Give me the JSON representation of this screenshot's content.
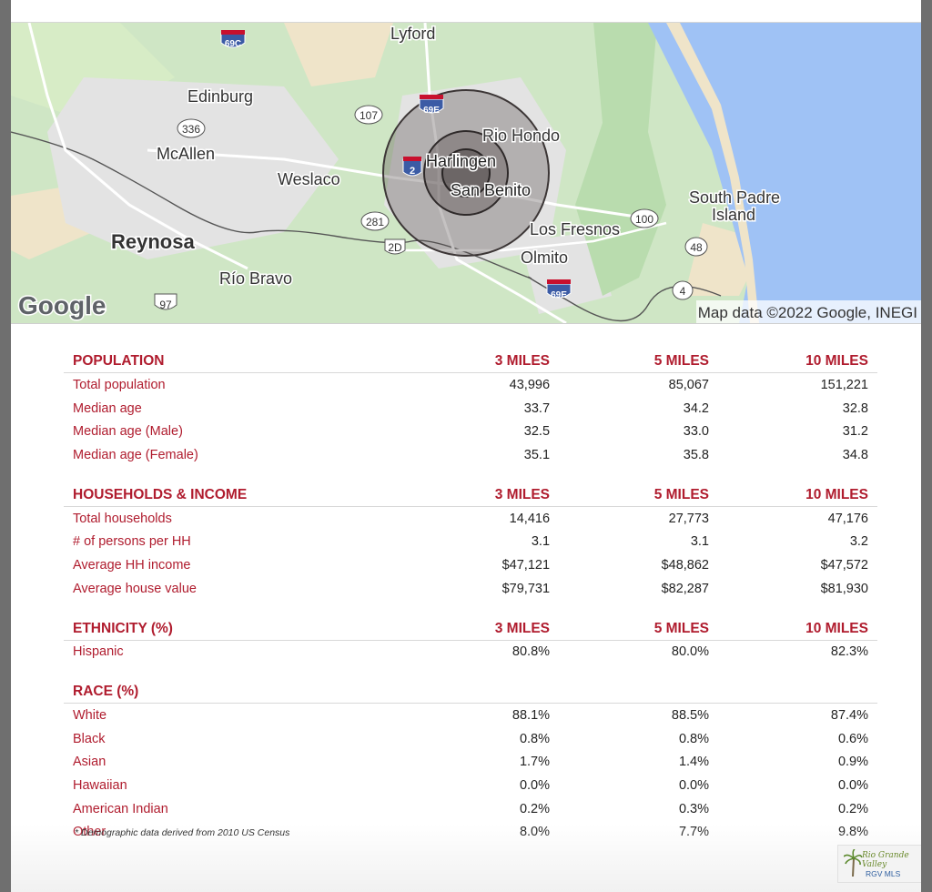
{
  "map": {
    "attribution": "Map data ©2022 Google, INEGI",
    "google_logo": "Google",
    "places": [
      "Lyford",
      "Edinburg",
      "McAllen",
      "Weslaco",
      "Harlingen",
      "Rio Hondo",
      "San Benito",
      "Reynosa",
      "Río Bravo",
      "Los Fresnos",
      "Olmito",
      "South Padre",
      "Island"
    ],
    "shields": [
      "69C",
      "336",
      "107",
      "69E",
      "2",
      "281",
      "2D",
      "100",
      "48",
      "97",
      "69E",
      "4"
    ]
  },
  "sections": [
    {
      "title": "POPULATION",
      "columns": [
        "3 MILES",
        "5 MILES",
        "10 MILES"
      ],
      "rows": [
        {
          "label": "Total population",
          "v": [
            "43,996",
            "85,067",
            "151,221"
          ]
        },
        {
          "label": "Median age",
          "v": [
            "33.7",
            "34.2",
            "32.8"
          ]
        },
        {
          "label": "Median age (Male)",
          "v": [
            "32.5",
            "33.0",
            "31.2"
          ]
        },
        {
          "label": "Median age (Female)",
          "v": [
            "35.1",
            "35.8",
            "34.8"
          ]
        }
      ]
    },
    {
      "title": "HOUSEHOLDS & INCOME",
      "columns": [
        "3 MILES",
        "5 MILES",
        "10 MILES"
      ],
      "rows": [
        {
          "label": "Total households",
          "v": [
            "14,416",
            "27,773",
            "47,176"
          ]
        },
        {
          "label": "# of persons per HH",
          "v": [
            "3.1",
            "3.1",
            "3.2"
          ]
        },
        {
          "label": "Average HH income",
          "v": [
            "$47,121",
            "$48,862",
            "$47,572"
          ]
        },
        {
          "label": "Average house value",
          "v": [
            "$79,731",
            "$82,287",
            "$81,930"
          ]
        }
      ]
    },
    {
      "title": "ETHNICITY (%)",
      "columns": [
        "3 MILES",
        "5 MILES",
        "10 MILES"
      ],
      "rows": [
        {
          "label": "Hispanic",
          "v": [
            "80.8%",
            "80.0%",
            "82.3%"
          ]
        }
      ]
    },
    {
      "title": "RACE (%)",
      "columns": [
        "",
        "",
        ""
      ],
      "rows": [
        {
          "label": "White",
          "v": [
            "88.1%",
            "88.5%",
            "87.4%"
          ]
        },
        {
          "label": "Black",
          "v": [
            "0.8%",
            "0.8%",
            "0.6%"
          ]
        },
        {
          "label": "Asian",
          "v": [
            "1.7%",
            "1.4%",
            "0.9%"
          ]
        },
        {
          "label": "Hawaiian",
          "v": [
            "0.0%",
            "0.0%",
            "0.0%"
          ]
        },
        {
          "label": "American Indian",
          "v": [
            "0.2%",
            "0.3%",
            "0.2%"
          ]
        },
        {
          "label": "Other",
          "v": [
            "8.0%",
            "7.7%",
            "9.8%"
          ]
        }
      ]
    }
  ],
  "footnote": "* Demographic data derived from 2010 US Census",
  "logo": {
    "line1": "Rio Grande Valley",
    "line2": "RGV MLS"
  },
  "colors": {
    "accent": "#b01c2e",
    "water": "#9fc2f5",
    "land": "#cfe6c5",
    "urban": "#e3e3e3",
    "radius": "#5a5050"
  }
}
